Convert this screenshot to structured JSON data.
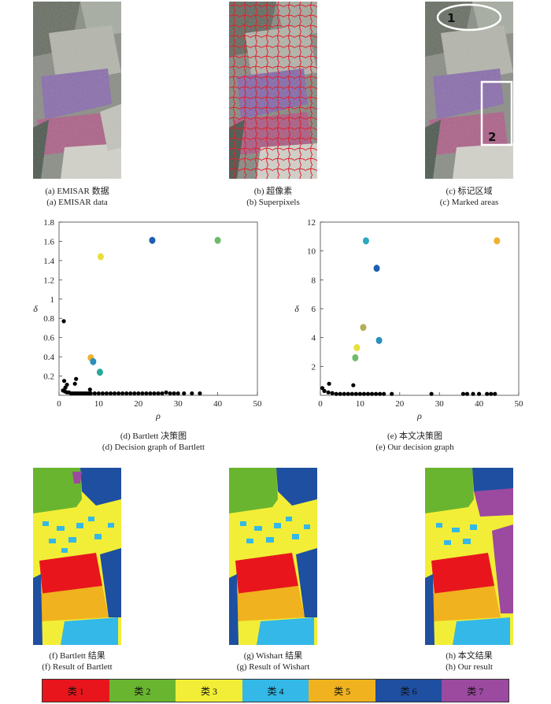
{
  "top_images": [
    {
      "caption_cn": "(a) EMISAR 数据",
      "caption_en": "(a) EMISAR data"
    },
    {
      "caption_cn": "(b) 超像素",
      "caption_en": "(b) Superpixels"
    },
    {
      "caption_cn": "(c) 标记区域",
      "caption_en": "(c) Marked areas",
      "marks": [
        "1",
        "2"
      ]
    }
  ],
  "chart_data": [
    {
      "type": "scatter",
      "caption_cn": "(d) Bartlett 决策图",
      "caption_en": "(d) Decision graph of Bartlett",
      "xlabel": "ρ",
      "ylabel": "δ",
      "xlim": [
        0,
        50
      ],
      "ylim": [
        0,
        1.8
      ],
      "xticks": [
        0,
        10,
        20,
        30,
        40,
        50
      ],
      "yticks": [
        0.2,
        0.4,
        0.6,
        0.8,
        1.0,
        1.2,
        1.4,
        1.6,
        1.8
      ],
      "ytick_labels": [
        "0.2",
        "0.4",
        "0.6",
        "0.8",
        "1",
        "1.2",
        "1.4",
        "1.6",
        "1.8"
      ],
      "grid": false,
      "highlighted": [
        {
          "x": 40.0,
          "y": 1.61,
          "color": "#6dbb6a"
        },
        {
          "x": 23.5,
          "y": 1.61,
          "color": "#1f5fb0"
        },
        {
          "x": 10.5,
          "y": 1.44,
          "color": "#e8df3a"
        },
        {
          "x": 8.0,
          "y": 0.39,
          "color": "#f0b030"
        },
        {
          "x": 8.6,
          "y": 0.35,
          "color": "#2a8fbf"
        },
        {
          "x": 10.3,
          "y": 0.24,
          "color": "#29a89a"
        }
      ],
      "black_points": [
        [
          1.2,
          0.77
        ],
        [
          1.3,
          0.15
        ],
        [
          2.0,
          0.11
        ],
        [
          1.6,
          0.08
        ],
        [
          4.3,
          0.17
        ],
        [
          4.0,
          0.12
        ],
        [
          7.8,
          0.06
        ],
        [
          1.0,
          0.05
        ],
        [
          1.5,
          0.04
        ],
        [
          2.0,
          0.03
        ],
        [
          2.5,
          0.03
        ],
        [
          3.0,
          0.02
        ],
        [
          3.5,
          0.02
        ],
        [
          4.0,
          0.02
        ],
        [
          4.5,
          0.02
        ],
        [
          5.0,
          0.02
        ],
        [
          5.5,
          0.02
        ],
        [
          6.0,
          0.02
        ],
        [
          6.5,
          0.02
        ],
        [
          7.0,
          0.02
        ],
        [
          7.5,
          0.02
        ],
        [
          8.0,
          0.02
        ],
        [
          9.0,
          0.02
        ],
        [
          10.0,
          0.02
        ],
        [
          11.0,
          0.02
        ],
        [
          12.0,
          0.02
        ],
        [
          13.0,
          0.02
        ],
        [
          14.0,
          0.02
        ],
        [
          15.0,
          0.02
        ],
        [
          16.0,
          0.02
        ],
        [
          17.0,
          0.02
        ],
        [
          18.0,
          0.02
        ],
        [
          19.0,
          0.02
        ],
        [
          20.0,
          0.02
        ],
        [
          21.0,
          0.02
        ],
        [
          22.0,
          0.02
        ],
        [
          23.0,
          0.02
        ],
        [
          24.0,
          0.02
        ],
        [
          25.0,
          0.02
        ],
        [
          26.0,
          0.02
        ],
        [
          27.0,
          0.03
        ],
        [
          28.0,
          0.02
        ],
        [
          29.0,
          0.02
        ],
        [
          30.0,
          0.02
        ],
        [
          31.5,
          0.02
        ],
        [
          33.5,
          0.02
        ],
        [
          35.5,
          0.02
        ]
      ]
    },
    {
      "type": "scatter",
      "caption_cn": "(e) 本文决策图",
      "caption_en": "(e) Our decision graph",
      "xlabel": "ρ",
      "ylabel": "δ",
      "xlim": [
        0,
        50
      ],
      "ylim": [
        0,
        12
      ],
      "xticks": [
        0,
        10,
        20,
        30,
        40,
        50
      ],
      "yticks": [
        2,
        4,
        6,
        8,
        10,
        12
      ],
      "ytick_labels": [
        "2",
        "4",
        "6",
        "8",
        "10",
        "12"
      ],
      "grid": false,
      "highlighted": [
        {
          "x": 11.5,
          "y": 10.7,
          "color": "#2aa8c0"
        },
        {
          "x": 44.5,
          "y": 10.7,
          "color": "#f0b030"
        },
        {
          "x": 14.2,
          "y": 8.8,
          "color": "#1f5fb0"
        },
        {
          "x": 10.8,
          "y": 4.7,
          "color": "#b5ad5a"
        },
        {
          "x": 14.8,
          "y": 3.8,
          "color": "#2a8fbf"
        },
        {
          "x": 9.2,
          "y": 3.3,
          "color": "#e8df3a"
        },
        {
          "x": 8.8,
          "y": 2.6,
          "color": "#6dbb6a"
        }
      ],
      "black_points": [
        [
          0.5,
          0.5
        ],
        [
          1.0,
          0.3
        ],
        [
          2.2,
          0.8
        ],
        [
          2.0,
          0.2
        ],
        [
          3.0,
          0.15
        ],
        [
          4.0,
          0.1
        ],
        [
          5.0,
          0.1
        ],
        [
          6.0,
          0.1
        ],
        [
          7.0,
          0.1
        ],
        [
          8.3,
          0.7
        ],
        [
          8.0,
          0.1
        ],
        [
          9.0,
          0.1
        ],
        [
          10.0,
          0.1
        ],
        [
          11.0,
          0.1
        ],
        [
          12.0,
          0.1
        ],
        [
          13.0,
          0.1
        ],
        [
          14.0,
          0.1
        ],
        [
          15.0,
          0.1
        ],
        [
          16.0,
          0.1
        ],
        [
          18.0,
          0.1
        ],
        [
          28.0,
          0.1
        ],
        [
          36.0,
          0.1
        ],
        [
          37.0,
          0.1
        ],
        [
          38.5,
          0.1
        ],
        [
          40.0,
          0.1
        ],
        [
          42.0,
          0.1
        ],
        [
          43.0,
          0.1
        ],
        [
          44.0,
          0.1
        ]
      ]
    }
  ],
  "result_images": [
    {
      "caption_cn": "(f) Bartlett 结果",
      "caption_en": "(f) Result of Bartlett"
    },
    {
      "caption_cn": "(g) Wishart 结果",
      "caption_en": "(g) Result of Wishart"
    },
    {
      "caption_cn": "(h) 本文结果",
      "caption_en": "(h) Our result"
    }
  ],
  "legend": [
    {
      "label": "类 1",
      "color": "#e8161c"
    },
    {
      "label": "类 2",
      "color": "#69b52f"
    },
    {
      "label": "类 3",
      "color": "#f2ee37"
    },
    {
      "label": "类 4",
      "color": "#33b8e8"
    },
    {
      "label": "类 5",
      "color": "#f0b21e"
    },
    {
      "label": "类 6",
      "color": "#1e4fa0"
    },
    {
      "label": "类 7",
      "color": "#9b4aa0"
    }
  ]
}
